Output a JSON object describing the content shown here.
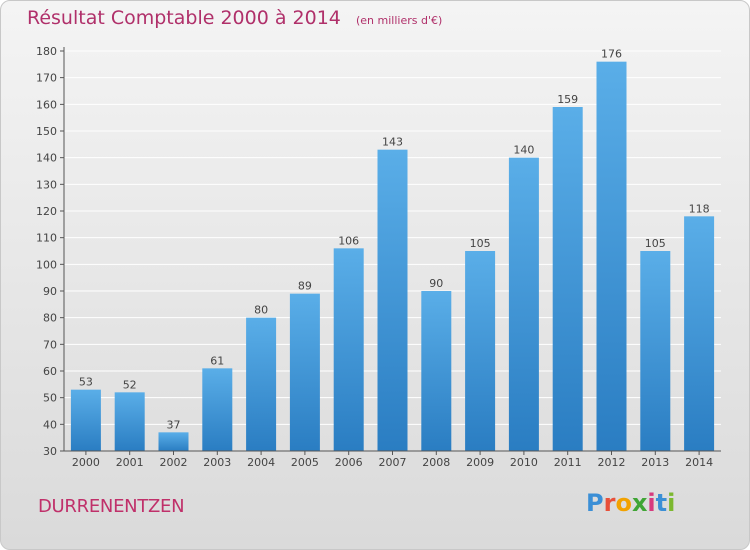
{
  "header": {
    "title": "Résultat Comptable 2000 à 2014",
    "subtitle": "(en milliers d'€)"
  },
  "footer": {
    "commune": "DURRENENTZEN",
    "brand_letters": [
      "P",
      "r",
      "o",
      "x",
      "i",
      "t",
      "i"
    ],
    "brand_colors": [
      "#3b8fd6",
      "#e8503a",
      "#f2a200",
      "#3fa535",
      "#d63a7e",
      "#3b8fd6",
      "#7cb82f"
    ]
  },
  "colors": {
    "bar_top": "#5aaee8",
    "bar_bottom": "#2a7dc2",
    "axis": "#555555",
    "grid": "#ffffff",
    "text": "#444444"
  },
  "chart_data": {
    "type": "bar",
    "categories": [
      "2000",
      "2001",
      "2002",
      "2003",
      "2004",
      "2005",
      "2006",
      "2007",
      "2008",
      "2009",
      "2010",
      "2011",
      "2012",
      "2013",
      "2014"
    ],
    "values": [
      53,
      52,
      37,
      61,
      80,
      89,
      106,
      143,
      90,
      105,
      140,
      159,
      176,
      105,
      118
    ],
    "data_labels": [
      "53",
      "52",
      "37",
      "61",
      "80",
      "89",
      "106",
      "143",
      "90",
      "105",
      "140",
      "159",
      "176",
      "105",
      "118"
    ],
    "yticks": [
      30,
      40,
      50,
      60,
      70,
      80,
      90,
      100,
      110,
      120,
      130,
      140,
      150,
      160,
      170,
      180
    ],
    "ylim": [
      30,
      180
    ],
    "grid": true,
    "legend": "none"
  }
}
